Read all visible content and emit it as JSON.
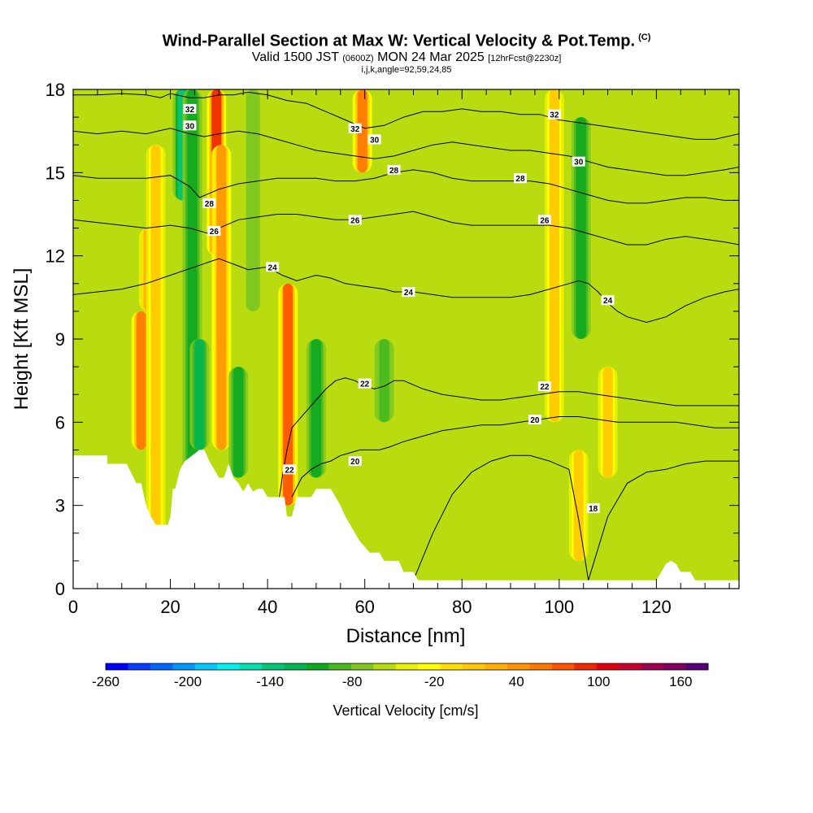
{
  "header": {
    "title": "Wind-Parallel Section at Max W: Vertical Velocity & Pot.Temp.",
    "copyright": "(C)",
    "subtitle_valid": "Valid 1500 JST",
    "subtitle_z": "(0600Z)",
    "subtitle_date": "MON 24 Mar 2025",
    "subtitle_fcst": "[12hrFcst@2230z]",
    "index_line": "i,j,k,angle=92,59,24,85"
  },
  "chart_data": {
    "type": "heatmap",
    "title": "Wind-Parallel Section at Max W: Vertical Velocity & Pot.Temp.",
    "xlabel": "Distance [nm]",
    "ylabel": "Height [Kft MSL]",
    "xlim": [
      0,
      137
    ],
    "ylim": [
      0,
      18
    ],
    "xticks": [
      0,
      20,
      40,
      60,
      80,
      100,
      120
    ],
    "yticks": [
      0,
      3,
      6,
      9,
      12,
      15,
      18
    ],
    "background_field": "Vertical Velocity [cm/s]",
    "colorbar": {
      "label": "Vertical Velocity [cm/s]",
      "min": -260,
      "max": 180,
      "step": 20,
      "tick_labels": [
        "-260",
        "-200",
        "-140",
        "-80",
        "-20",
        "40",
        "100",
        "160"
      ],
      "tick_values": [
        -260,
        -200,
        -140,
        -80,
        -20,
        40,
        100,
        160
      ],
      "colors": [
        "#0000ff",
        "#0a3cff",
        "#0066ff",
        "#0096ff",
        "#00c8ff",
        "#00f0f0",
        "#00e0b0",
        "#00c878",
        "#00b450",
        "#10a820",
        "#48b820",
        "#80c820",
        "#b8dc10",
        "#e8f000",
        "#ffff00",
        "#ffdf00",
        "#ffc800",
        "#ffb000",
        "#ff9600",
        "#ff7800",
        "#ff5500",
        "#f02800",
        "#e00010",
        "#c80030",
        "#a00050",
        "#800060",
        "#55007a"
      ]
    },
    "terrain_profile": {
      "x": [
        0,
        7,
        7,
        8,
        11,
        13,
        13.5,
        14,
        15,
        16,
        17,
        19.5,
        20,
        20.5,
        21,
        22,
        23,
        26,
        27,
        28,
        29,
        30,
        31,
        32,
        33,
        34,
        35,
        36,
        37,
        38,
        39,
        40,
        41,
        42,
        43,
        43.5,
        44,
        44.5,
        45,
        46,
        47,
        48,
        49,
        50,
        51,
        52,
        53,
        54,
        55,
        56,
        57,
        58,
        59,
        60,
        61,
        62,
        63,
        64,
        65,
        66,
        67,
        68,
        69,
        70,
        71,
        72,
        73,
        74,
        75,
        76,
        77,
        78,
        79,
        80,
        95,
        110,
        120,
        121,
        122,
        123,
        124,
        125,
        126,
        127,
        128,
        129,
        130,
        131,
        132,
        133,
        134,
        135,
        136,
        137
      ],
      "y": [
        4.8,
        4.8,
        4.5,
        4.5,
        4.5,
        3.8,
        3.8,
        3.8,
        3,
        2.6,
        2.3,
        2.3,
        2.6,
        3.6,
        3.6,
        4.3,
        4.6,
        5,
        5,
        4.6,
        4.3,
        4,
        4,
        4.5,
        4,
        3.8,
        3.5,
        3.8,
        3.5,
        3.6,
        3.6,
        3.3,
        3.3,
        3.3,
        3.3,
        3.3,
        2.6,
        2.6,
        2.6,
        3.3,
        3.3,
        3.3,
        3.3,
        3.6,
        3.6,
        3.6,
        3.6,
        3.3,
        3,
        2.6,
        2.3,
        2,
        1.7,
        1.5,
        1.3,
        1.3,
        1.3,
        1,
        1,
        1,
        1,
        0.6,
        0.6,
        0.6,
        0.3,
        0.3,
        0.3,
        0.3,
        0.3,
        0.3,
        0.3,
        0.3,
        0.3,
        0.3,
        0.3,
        0.3,
        0.3,
        0.6,
        0.9,
        1,
        0.9,
        0.6,
        0.6,
        0.6,
        0.3,
        0.3,
        0.3,
        0.3,
        0.3,
        0.3,
        0.3,
        0.3,
        0.3,
        0.3
      ]
    },
    "contours": [
      {
        "level": 32,
        "label": "32",
        "x": [
          0,
          5,
          10,
          15,
          18,
          20,
          24,
          27,
          30,
          33,
          36,
          40,
          44,
          48,
          52,
          56,
          60,
          64,
          68,
          72,
          76,
          80,
          84,
          88,
          92,
          96,
          100,
          104,
          108,
          112,
          116,
          120,
          124,
          128,
          132,
          137
        ],
        "y": [
          17.8,
          17.8,
          17.85,
          17.8,
          17.7,
          17.85,
          17.7,
          17.7,
          17.8,
          17.8,
          17.9,
          17.8,
          17.6,
          17.5,
          17.2,
          16.9,
          16.6,
          16.7,
          17.0,
          17.2,
          17.2,
          17.3,
          17.2,
          17.2,
          17.1,
          17.1,
          16.9,
          16.8,
          16.7,
          16.6,
          16.5,
          16.4,
          16.3,
          16.2,
          16.2,
          16.4
        ]
      },
      {
        "level": 30,
        "label": "30",
        "x": [
          0,
          5,
          10,
          15,
          20,
          24,
          27,
          30,
          34,
          38,
          42,
          46,
          50,
          54,
          58,
          62,
          66,
          70,
          74,
          78,
          82,
          86,
          90,
          94,
          98,
          102,
          106,
          110,
          114,
          118,
          122,
          126,
          130,
          134,
          137
        ],
        "y": [
          16.5,
          16.4,
          16.5,
          16.4,
          16.6,
          16.4,
          16.3,
          16.4,
          16.5,
          16.4,
          16.2,
          16.0,
          15.8,
          15.7,
          15.6,
          15.5,
          15.6,
          15.8,
          16.0,
          16.1,
          16.0,
          15.9,
          15.8,
          15.8,
          15.7,
          15.6,
          15.4,
          15.2,
          15.1,
          15.0,
          14.9,
          14.9,
          15.0,
          15.1,
          15.2
        ]
      },
      {
        "level": 28,
        "label": "28",
        "x": [
          0,
          5,
          10,
          15,
          20,
          24,
          26,
          30,
          34,
          38,
          42,
          46,
          50,
          54,
          58,
          62,
          66,
          70,
          74,
          78,
          82,
          86,
          90,
          94,
          98,
          102,
          106,
          110,
          114,
          118,
          122,
          126,
          130,
          134,
          137
        ],
        "y": [
          14.9,
          14.8,
          14.8,
          14.8,
          14.9,
          14.5,
          14.1,
          14.4,
          14.6,
          14.7,
          14.8,
          14.8,
          14.8,
          14.7,
          14.7,
          14.8,
          15.0,
          15.1,
          15.0,
          14.8,
          14.7,
          14.7,
          14.7,
          14.7,
          14.6,
          14.4,
          14.2,
          14.0,
          13.9,
          13.9,
          14.0,
          14.1,
          14.1,
          14.0,
          14.0
        ]
      },
      {
        "level": 26,
        "label": "26",
        "x": [
          0,
          5,
          10,
          15,
          20,
          24,
          28,
          30,
          34,
          38,
          42,
          46,
          50,
          54,
          58,
          62,
          66,
          70,
          74,
          78,
          82,
          86,
          90,
          94,
          98,
          102,
          106,
          110,
          114,
          118,
          122,
          126,
          130,
          134,
          137
        ],
        "y": [
          13.3,
          13.2,
          13.1,
          13.0,
          13.1,
          13.0,
          12.8,
          13.0,
          13.3,
          13.4,
          13.5,
          13.5,
          13.4,
          13.3,
          13.3,
          13.4,
          13.5,
          13.6,
          13.4,
          13.2,
          13.1,
          13.1,
          13.1,
          13.1,
          13.1,
          13.0,
          12.8,
          12.6,
          12.4,
          12.4,
          12.6,
          12.7,
          12.6,
          12.5,
          12.4
        ]
      },
      {
        "level": 24,
        "label": "24",
        "x": [
          0,
          5,
          10,
          15,
          20,
          25,
          30,
          33,
          36,
          40,
          43,
          46,
          50,
          53,
          56,
          60,
          64,
          66,
          70,
          74,
          78,
          82,
          86,
          90,
          94,
          98,
          102,
          104,
          106,
          108,
          110,
          112,
          114,
          118,
          122,
          126,
          130,
          134,
          137
        ],
        "y": [
          10.6,
          10.7,
          10.8,
          11.0,
          11.3,
          11.6,
          11.9,
          11.7,
          11.5,
          11.6,
          11.3,
          11.1,
          11.3,
          11.2,
          11.0,
          10.9,
          10.8,
          10.7,
          10.7,
          10.6,
          10.5,
          10.5,
          10.5,
          10.5,
          10.6,
          10.8,
          11.0,
          11.1,
          11.0,
          10.7,
          10.3,
          10.0,
          9.8,
          9.6,
          9.8,
          10.2,
          10.5,
          10.7,
          10.8
        ]
      },
      {
        "level": 22,
        "label": "22",
        "x": [
          42,
          43,
          44,
          45,
          46,
          48,
          50,
          52,
          54,
          56,
          58,
          60,
          62,
          64,
          66,
          68,
          72,
          76,
          80,
          84,
          88,
          92,
          96,
          100,
          104,
          108,
          112,
          116,
          120,
          124,
          128,
          132,
          137
        ],
        "y": [
          2.8,
          4.0,
          5.0,
          5.8,
          6.0,
          6.4,
          6.8,
          7.2,
          7.5,
          7.6,
          7.5,
          7.3,
          7.2,
          7.3,
          7.5,
          7.5,
          7.2,
          7.0,
          6.9,
          6.8,
          6.8,
          6.9,
          7.0,
          7.1,
          7.1,
          7.0,
          6.9,
          6.8,
          6.7,
          6.6,
          6.6,
          6.6,
          6.6
        ]
      },
      {
        "level": 20,
        "label": "20",
        "x": [
          45,
          47,
          49,
          51,
          53,
          55,
          57,
          59,
          61,
          63,
          65,
          68,
          72,
          76,
          80,
          84,
          88,
          92,
          96,
          100,
          104,
          108,
          112,
          116,
          120,
          124,
          128,
          132,
          137
        ],
        "y": [
          3.3,
          4.0,
          4.3,
          4.5,
          4.6,
          4.8,
          4.9,
          5.0,
          5.0,
          5.0,
          5.1,
          5.3,
          5.5,
          5.7,
          5.8,
          5.9,
          5.9,
          6.0,
          6.1,
          6.2,
          6.2,
          6.1,
          6.0,
          6.0,
          6.0,
          6.0,
          5.9,
          5.8,
          5.8
        ]
      },
      {
        "level": 18,
        "label": "18",
        "x": [
          70,
          74,
          78,
          82,
          86,
          90,
          94,
          98,
          102,
          104,
          106,
          110,
          114,
          118,
          122,
          126,
          130,
          134,
          137
        ],
        "y": [
          0.3,
          2.0,
          3.4,
          4.2,
          4.6,
          4.8,
          4.8,
          4.6,
          4.3,
          2.5,
          0.3,
          2.6,
          3.8,
          4.2,
          4.3,
          4.5,
          4.6,
          4.6,
          4.6
        ]
      }
    ],
    "contour_labels": [
      {
        "text": "32",
        "x": 24,
        "y": 17.3
      },
      {
        "text": "30",
        "x": 24,
        "y": 16.7
      },
      {
        "text": "28",
        "x": 28,
        "y": 13.9
      },
      {
        "text": "26",
        "x": 29,
        "y": 12.9
      },
      {
        "text": "24",
        "x": 41,
        "y": 11.6
      },
      {
        "text": "32",
        "x": 58,
        "y": 16.6
      },
      {
        "text": "30",
        "x": 62,
        "y": 16.2
      },
      {
        "text": "28",
        "x": 66,
        "y": 15.1
      },
      {
        "text": "26",
        "x": 58,
        "y": 13.3
      },
      {
        "text": "24",
        "x": 69,
        "y": 10.7
      },
      {
        "text": "22",
        "x": 60,
        "y": 7.4
      },
      {
        "text": "20",
        "x": 58,
        "y": 4.6
      },
      {
        "text": "22",
        "x": 44.5,
        "y": 4.3
      },
      {
        "text": "32",
        "x": 99,
        "y": 17.1
      },
      {
        "text": "30",
        "x": 104,
        "y": 15.4
      },
      {
        "text": "28",
        "x": 92,
        "y": 14.8
      },
      {
        "text": "26",
        "x": 97,
        "y": 13.3
      },
      {
        "text": "24",
        "x": 110,
        "y": 10.4
      },
      {
        "text": "22",
        "x": 97,
        "y": 7.3
      },
      {
        "text": "20",
        "x": 95,
        "y": 6.1
      },
      {
        "text": "18",
        "x": 107,
        "y": 2.9
      }
    ],
    "updraft_bands": [
      {
        "x": 14,
        "x_from": 5,
        "x_to": 10,
        "w": 120
      },
      {
        "x": 15.5,
        "x_from": 10,
        "x_to": 13,
        "w": 90
      },
      {
        "x": 17,
        "x_from": 2,
        "x_to": 16,
        "w": 60
      },
      {
        "x": 22.5,
        "x_from": 14,
        "x_to": 18,
        "w": -120
      },
      {
        "x": 24.5,
        "x_from": 4,
        "x_to": 18,
        "w": -80
      },
      {
        "x": 29.5,
        "x_from": 12,
        "x_to": 18,
        "w": 160
      },
      {
        "x": 30.5,
        "x_from": 5,
        "x_to": 16,
        "w": 110
      },
      {
        "x": 26,
        "x_from": 5,
        "x_to": 9,
        "w": -100
      },
      {
        "x": 34,
        "x_from": 4,
        "x_to": 8,
        "w": -70
      },
      {
        "x": 37,
        "x_from": 10,
        "x_to": 18,
        "w": -40
      },
      {
        "x": 44.2,
        "x_from": 3,
        "x_to": 11,
        "w": 140
      },
      {
        "x": 50,
        "x_from": 4,
        "x_to": 9,
        "w": -70
      },
      {
        "x": 59.5,
        "x_from": 15,
        "x_to": 18,
        "w": 120
      },
      {
        "x": 64,
        "x_from": 6,
        "x_to": 9,
        "w": -60
      },
      {
        "x": 99,
        "x_from": 6,
        "x_to": 18,
        "w": 60
      },
      {
        "x": 104.5,
        "x_from": 9,
        "x_to": 17,
        "w": -80
      },
      {
        "x": 104,
        "x_from": 1,
        "x_to": 5,
        "w": 70
      },
      {
        "x": 110,
        "x_from": 4,
        "x_to": 8,
        "w": 60
      }
    ],
    "background_velocity": -10
  }
}
